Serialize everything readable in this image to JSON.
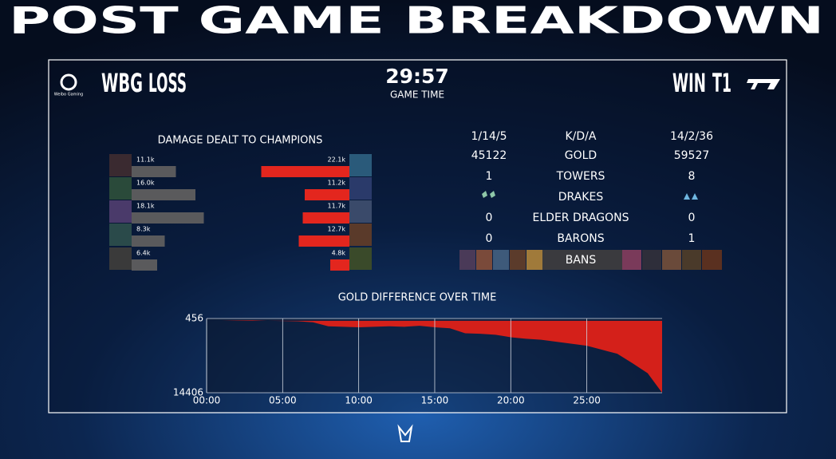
{
  "title": "POST GAME BREAKDOWN",
  "header": {
    "logo_caption": "Weibo Gaming",
    "left_team": "WBG",
    "left_result": "LOSS",
    "game_time": "29:57",
    "game_time_label": "GAME TIME",
    "right_result": "WIN",
    "right_team": "T1"
  },
  "stats": {
    "rows": [
      {
        "left": "1/14/5",
        "label": "K/D/A",
        "right": "14/2/36"
      },
      {
        "left": "45122",
        "label": "GOLD",
        "right": "59527"
      },
      {
        "left": "1",
        "label": "TOWERS",
        "right": "8"
      },
      {
        "label": "DRAKES"
      },
      {
        "left": "0",
        "label": "ELDER DRAGONS",
        "right": "0"
      },
      {
        "left": "0",
        "label": "BARONS",
        "right": "1"
      },
      {
        "label": "BANS"
      }
    ]
  },
  "chart_data": [
    {
      "type": "bar",
      "title": "DAMAGE DEALT TO CHAMPIONS",
      "series": [
        {
          "color": "#5a5a5c",
          "values": [
            11.1,
            16.0,
            18.1,
            8.3,
            6.4
          ],
          "value_labels": [
            "11.1k",
            "16.0k",
            "18.1k",
            "8.3k",
            "6.4k"
          ]
        },
        {
          "color": "#e3261e",
          "values": [
            22.1,
            11.2,
            11.7,
            12.7,
            4.8
          ],
          "value_labels": [
            "22.1k",
            "11.2k",
            "11.7k",
            "12.7k",
            "4.8k"
          ]
        }
      ]
    },
    {
      "type": "area",
      "title": "GOLD DIFFERENCE OVER TIME",
      "color": "#d4201a",
      "x": [
        0,
        1,
        2,
        3,
        4,
        5,
        6,
        7,
        8,
        9,
        10,
        11,
        12,
        13,
        14,
        15,
        16,
        17,
        18,
        19,
        20,
        21,
        22,
        23,
        24,
        25,
        26,
        27,
        28,
        29,
        29.95
      ],
      "values": [
        0,
        0,
        50,
        100,
        0,
        -50,
        -100,
        -300,
        -1100,
        -1200,
        -1300,
        -1200,
        -1100,
        -1200,
        -1000,
        -1300,
        -1500,
        -2500,
        -2600,
        -2800,
        -3300,
        -3600,
        -3800,
        -4200,
        -4600,
        -5000,
        -5800,
        -6600,
        -8500,
        -10500,
        -14406
      ],
      "xlim": [
        0,
        29.95
      ],
      "ylim": [
        -14406,
        456
      ],
      "xticks": [
        {
          "value": 0,
          "label": "00:00"
        },
        {
          "value": 5,
          "label": "05:00"
        },
        {
          "value": 10,
          "label": "10:00"
        },
        {
          "value": 15,
          "label": "15:00"
        },
        {
          "value": 20,
          "label": "20:00"
        },
        {
          "value": 25,
          "label": "25:00"
        }
      ],
      "yticks": [
        456,
        {
          "value": -14406,
          "label": "14406"
        }
      ]
    }
  ]
}
